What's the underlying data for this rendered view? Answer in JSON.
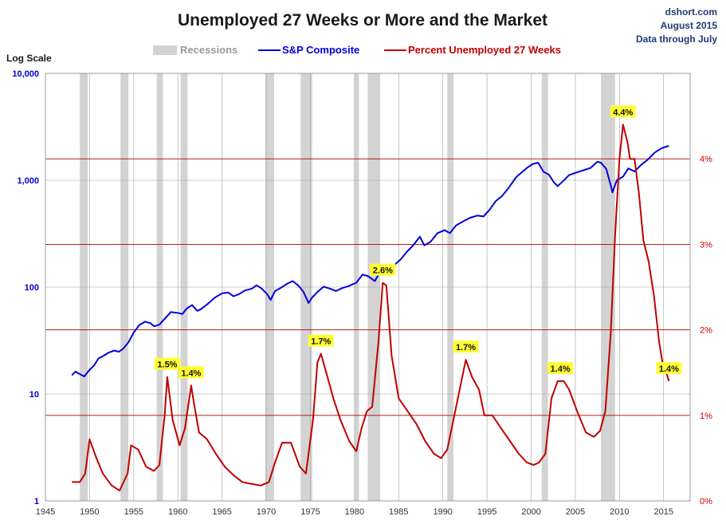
{
  "chart_data": {
    "type": "line",
    "title": "Unemployed 27 Weeks or More and the Market",
    "source_lines": [
      "dshort.com",
      "August 2015",
      "Data through July"
    ],
    "y_left_label": "Log Scale",
    "y_left_scale": "log",
    "y_left_lim": [
      1,
      10000
    ],
    "y_left_ticks": [
      1,
      10,
      100,
      1000,
      10000
    ],
    "y_left_tick_labels": [
      "1",
      "10",
      "100",
      "1,000",
      "10,000"
    ],
    "y_right_lim": [
      0,
      5
    ],
    "y_right_ticks": [
      0,
      1,
      2,
      3,
      4
    ],
    "y_right_tick_labels": [
      "0%",
      "1%",
      "2%",
      "3%",
      "4%"
    ],
    "x_lim": [
      1945,
      2018
    ],
    "x_ticks": [
      1945,
      1950,
      1955,
      1960,
      1965,
      1970,
      1975,
      1980,
      1985,
      1990,
      1995,
      2000,
      2005,
      2010,
      2015
    ],
    "x_tick_labels": [
      "1945",
      "1950",
      "1955",
      "1960",
      "1965",
      "1970",
      "1975",
      "1980",
      "1985",
      "1990",
      "1995",
      "2000",
      "2005",
      "2010",
      "2015"
    ],
    "legend": {
      "position": "top",
      "recessions_label": "Recessions",
      "sp_label": "S&P Composite",
      "unemp_label": "Percent Unemployed 27 Weeks"
    },
    "colors": {
      "sp": "#0000dd",
      "unemp": "#c00000",
      "recession": "#d3d3d3",
      "grid": "#a0a0a0",
      "ref_lines": "#b00000",
      "annotation_bg": "#ffff33"
    },
    "recessions": [
      [
        1948.9,
        1949.8
      ],
      [
        1953.5,
        1954.4
      ],
      [
        1957.6,
        1958.3
      ],
      [
        1960.3,
        1961.1
      ],
      [
        1969.9,
        1970.9
      ],
      [
        1973.9,
        1975.2
      ],
      [
        1980.0,
        1980.5
      ],
      [
        1981.5,
        1982.9
      ],
      [
        1990.5,
        1991.2
      ],
      [
        2001.2,
        2001.9
      ],
      [
        2007.9,
        2009.5
      ]
    ],
    "series": [
      {
        "name": "S&P Composite",
        "axis": "left",
        "x": [
          1948.0,
          1948.4,
          1948.8,
          1949.4,
          1949.9,
          1950.5,
          1951.0,
          1951.6,
          1952.2,
          1952.8,
          1953.3,
          1953.8,
          1954.4,
          1955.0,
          1955.6,
          1956.3,
          1956.9,
          1957.3,
          1957.9,
          1958.5,
          1959.2,
          1959.9,
          1960.5,
          1961.0,
          1961.6,
          1962.2,
          1962.6,
          1963.4,
          1964.2,
          1965.0,
          1965.7,
          1966.3,
          1966.9,
          1967.6,
          1968.4,
          1968.9,
          1969.5,
          1970.1,
          1970.5,
          1971.0,
          1971.7,
          1972.4,
          1973.0,
          1973.6,
          1974.2,
          1974.8,
          1975.2,
          1975.8,
          1976.5,
          1977.2,
          1977.9,
          1978.6,
          1979.3,
          1980.2,
          1980.9,
          1981.5,
          1982.3,
          1982.9,
          1983.6,
          1984.4,
          1985.2,
          1985.9,
          1986.6,
          1987.4,
          1987.9,
          1988.6,
          1989.4,
          1990.2,
          1990.8,
          1991.5,
          1992.3,
          1993.1,
          1993.9,
          1994.6,
          1995.3,
          1996.0,
          1996.7,
          1997.5,
          1998.3,
          1998.9,
          1999.6,
          2000.2,
          2000.8,
          2001.4,
          2002.0,
          2002.6,
          2003.0,
          2003.6,
          2004.3,
          2005.1,
          2005.9,
          2006.7,
          2007.5,
          2007.9,
          2008.5,
          2009.0,
          2009.2,
          2009.7,
          2010.4,
          2011.0,
          2011.7,
          2012.4,
          2013.2,
          2014.0,
          2014.8,
          2015.6
        ],
        "values": [
          15.0,
          16.2,
          15.5,
          14.6,
          16.5,
          18.5,
          21.5,
          22.8,
          24.5,
          25.5,
          24.8,
          26.5,
          30.5,
          37.5,
          44.0,
          47.5,
          46.0,
          43.0,
          44.5,
          50.5,
          58.5,
          57.5,
          56.0,
          63.0,
          68.0,
          60.0,
          62.0,
          70.0,
          80.0,
          87.5,
          89.0,
          82.0,
          86.0,
          93.0,
          97.0,
          104.0,
          97.0,
          86.0,
          76.0,
          92.0,
          99.0,
          108.0,
          114.0,
          104.0,
          91.0,
          71.0,
          80.0,
          90.0,
          101.0,
          97.0,
          92.0,
          98.0,
          102.0,
          110.0,
          131.0,
          127.0,
          114.0,
          140.0,
          161.0,
          158.0,
          181.0,
          213.0,
          244.0,
          296.0,
          246.0,
          265.0,
          320.0,
          341.0,
          320.0,
          378.0,
          413.0,
          446.0,
          467.0,
          458.0,
          530.0,
          640.0,
          710.0,
          860.0,
          1070.0,
          1180.0,
          1320.0,
          1420.0,
          1460.0,
          1200.0,
          1130.0,
          950.0,
          880.0,
          980.0,
          1120.0,
          1180.0,
          1240.0,
          1300.0,
          1490.0,
          1460.0,
          1280.0,
          900.0,
          770.0,
          1000.0,
          1080.0,
          1290.0,
          1210.0,
          1380.0,
          1560.0,
          1820.0,
          2000.0,
          2100.0
        ]
      },
      {
        "name": "Percent Unemployed 27 Weeks",
        "axis": "right",
        "x": [
          1948.0,
          1948.9,
          1949.5,
          1950.0,
          1950.7,
          1951.5,
          1952.5,
          1953.4,
          1954.3,
          1954.7,
          1955.5,
          1956.4,
          1957.3,
          1957.9,
          1958.5,
          1958.8,
          1959.4,
          1960.2,
          1960.8,
          1961.5,
          1961.8,
          1962.4,
          1963.3,
          1964.3,
          1965.3,
          1966.3,
          1967.3,
          1968.3,
          1969.4,
          1970.3,
          1971.0,
          1971.8,
          1972.8,
          1973.8,
          1974.5,
          1975.3,
          1975.8,
          1976.2,
          1976.8,
          1977.6,
          1978.4,
          1979.4,
          1980.2,
          1980.8,
          1981.4,
          1982.0,
          1982.7,
          1983.2,
          1983.6,
          1984.2,
          1985.0,
          1986.0,
          1987.0,
          1988.0,
          1989.0,
          1989.8,
          1990.5,
          1991.2,
          1991.9,
          1992.6,
          1993.3,
          1994.1,
          1994.7,
          1995.6,
          1996.6,
          1997.6,
          1998.6,
          1999.5,
          2000.3,
          2000.9,
          2001.6,
          2002.3,
          2003.0,
          2003.7,
          2004.3,
          2005.2,
          2006.2,
          2007.1,
          2007.8,
          2008.4,
          2009.0,
          2009.5,
          2010.0,
          2010.4,
          2010.9,
          2011.2,
          2011.7,
          2012.2,
          2012.7,
          2013.3,
          2013.9,
          2014.5,
          2014.9,
          2015.3,
          2015.6
        ],
        "values": [
          0.22,
          0.22,
          0.32,
          0.72,
          0.52,
          0.32,
          0.18,
          0.12,
          0.32,
          0.65,
          0.6,
          0.4,
          0.35,
          0.42,
          1.0,
          1.45,
          0.95,
          0.65,
          0.85,
          1.35,
          1.15,
          0.8,
          0.72,
          0.55,
          0.4,
          0.3,
          0.22,
          0.2,
          0.18,
          0.22,
          0.45,
          0.68,
          0.68,
          0.4,
          0.32,
          0.95,
          1.62,
          1.72,
          1.5,
          1.2,
          0.95,
          0.7,
          0.58,
          0.85,
          1.05,
          1.1,
          1.85,
          2.55,
          2.52,
          1.7,
          1.2,
          1.05,
          0.9,
          0.7,
          0.55,
          0.5,
          0.6,
          0.95,
          1.3,
          1.65,
          1.45,
          1.3,
          1.0,
          1.0,
          0.85,
          0.7,
          0.55,
          0.45,
          0.42,
          0.45,
          0.55,
          1.2,
          1.4,
          1.4,
          1.3,
          1.05,
          0.8,
          0.75,
          0.82,
          1.05,
          1.95,
          3.1,
          4.0,
          4.4,
          4.2,
          4.0,
          4.0,
          3.6,
          3.05,
          2.8,
          2.4,
          1.85,
          1.6,
          1.5,
          1.4
        ]
      }
    ],
    "annotations": [
      {
        "x": 1958.8,
        "value": 1.45,
        "text": "1.5%"
      },
      {
        "x": 1961.5,
        "value": 1.35,
        "text": "1.4%"
      },
      {
        "x": 1976.2,
        "value": 1.72,
        "text": "1.7%"
      },
      {
        "x": 1983.2,
        "value": 2.55,
        "text": "2.6%"
      },
      {
        "x": 1992.6,
        "value": 1.65,
        "text": "1.7%"
      },
      {
        "x": 2003.3,
        "value": 1.4,
        "text": "1.4%"
      },
      {
        "x": 2010.4,
        "value": 4.4,
        "text": "4.4%"
      },
      {
        "x": 2015.6,
        "value": 1.4,
        "text": "1.4%"
      }
    ]
  }
}
